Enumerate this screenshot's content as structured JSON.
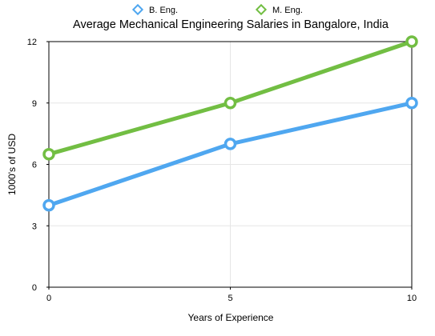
{
  "chart_data": {
    "type": "line",
    "title": "Average Mechanical Engineering Salaries in Bangalore, India",
    "xlabel": "Years of Experience",
    "ylabel": "1000's of USD",
    "x": [
      0,
      5,
      10
    ],
    "xticks": [
      "0",
      "5",
      "10"
    ],
    "yticks": [
      "0",
      "3",
      "6",
      "9",
      "12"
    ],
    "xlim": [
      0,
      10
    ],
    "ylim": [
      0,
      12
    ],
    "grid": true,
    "legend_position": "top-center",
    "series": [
      {
        "name": "B. Eng.",
        "values": [
          4,
          7,
          9
        ],
        "color": "#4FA7F0"
      },
      {
        "name": "M. Eng.",
        "values": [
          6.5,
          9,
          12
        ],
        "color": "#72BE43"
      }
    ]
  }
}
